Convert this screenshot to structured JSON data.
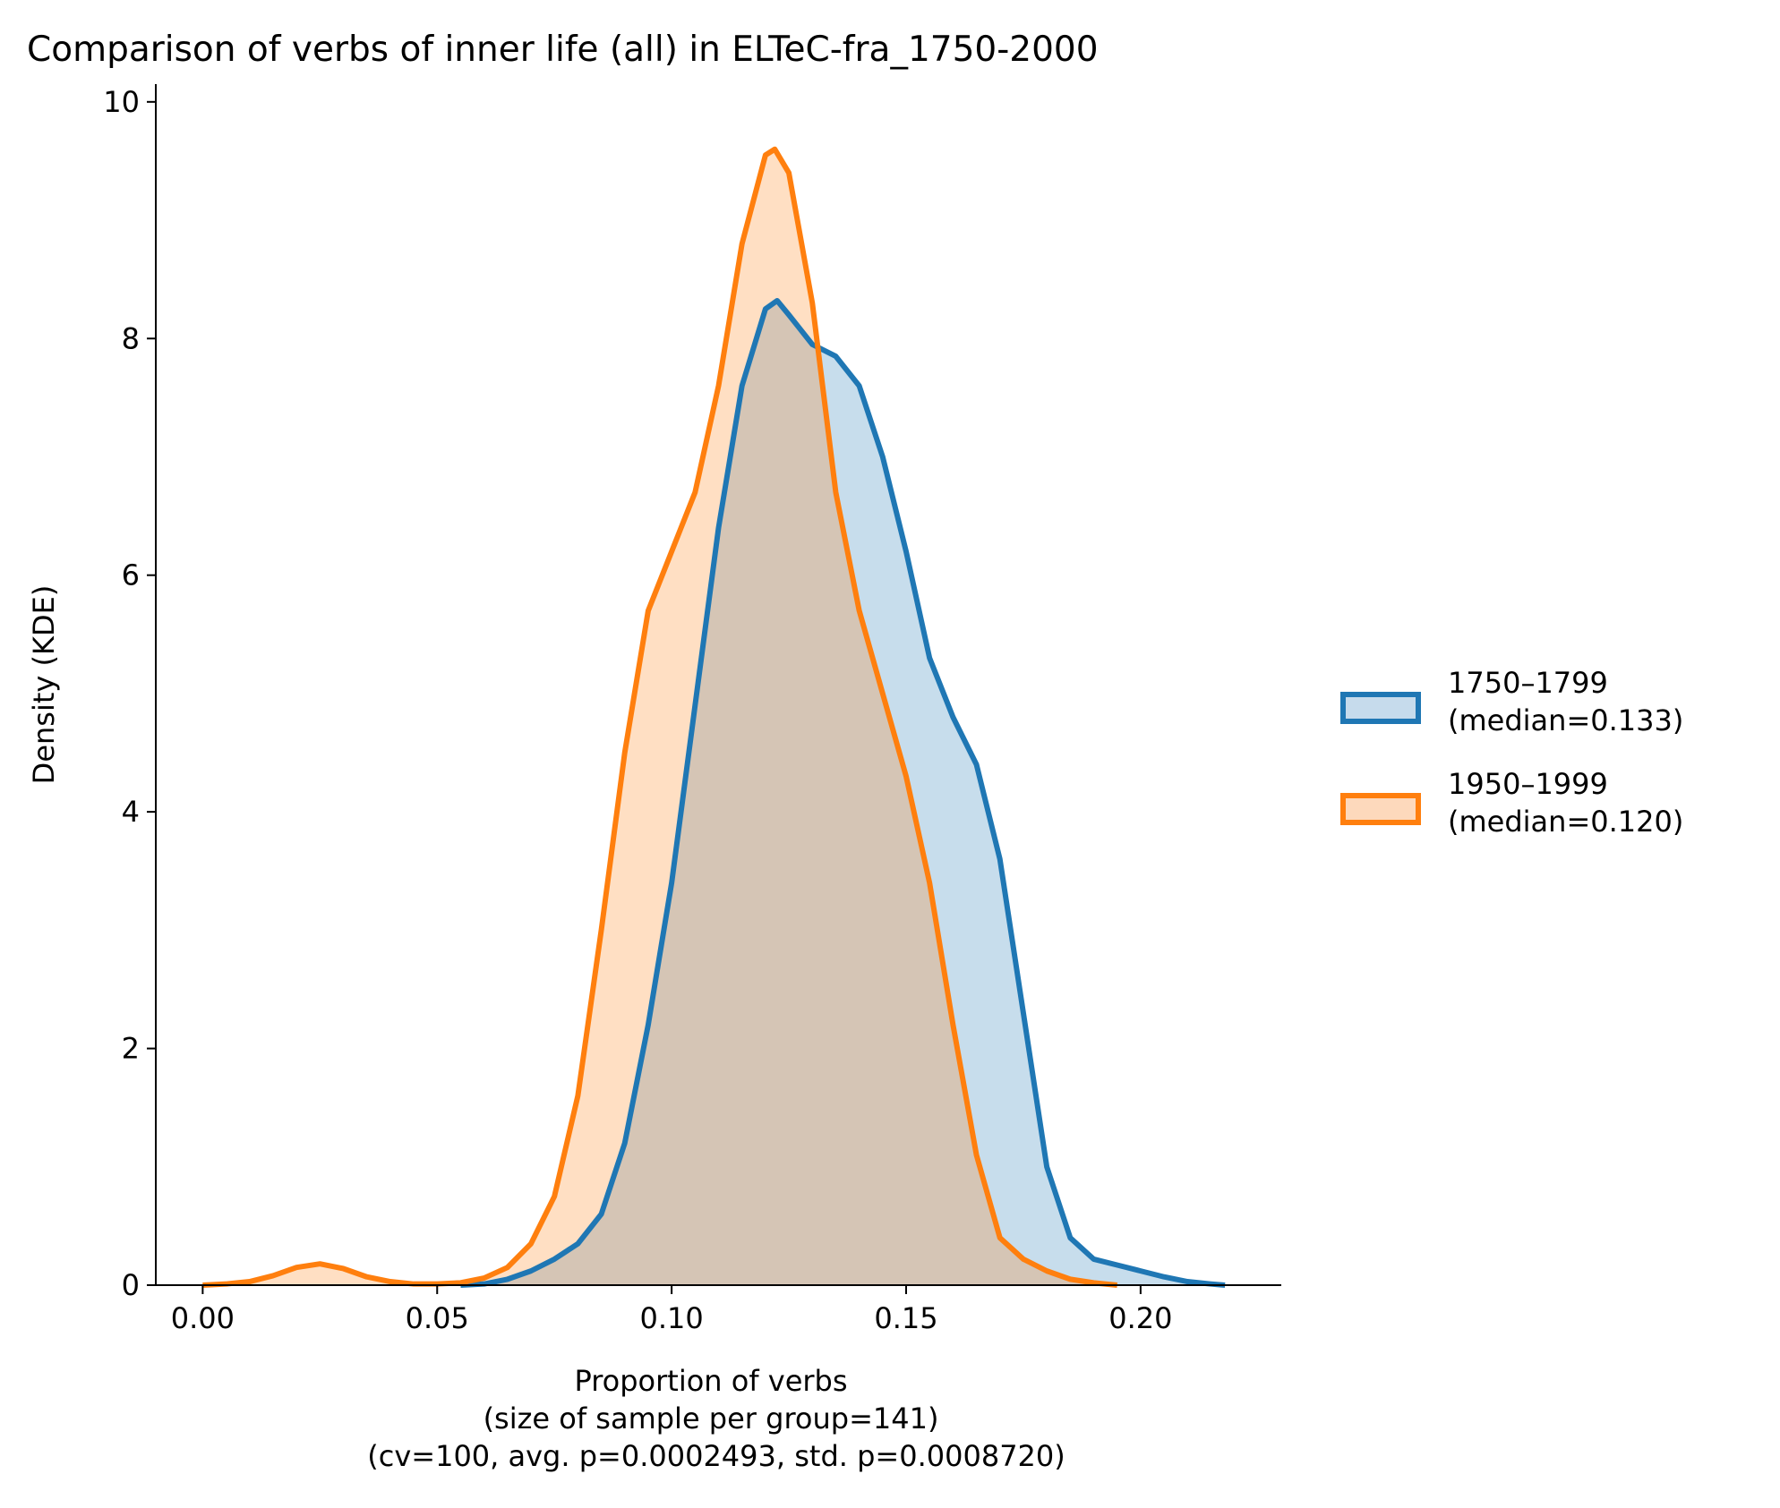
{
  "chart_data": {
    "type": "area",
    "title": "Comparison of verbs of inner life (all) in ELTeC-fra_1750-2000",
    "xlabel_lines": [
      "Proportion of verbs",
      "(size of sample per group=141)",
      "(cv=100, avg. p=0.0002493, std. p=0.0008720)"
    ],
    "ylabel": "Density (KDE)",
    "xlim": [
      -0.01,
      0.23
    ],
    "ylim": [
      0,
      10.15
    ],
    "xticks": [
      0.0,
      0.05,
      0.1,
      0.15,
      0.2
    ],
    "xtick_labels": [
      "0.00",
      "0.05",
      "0.10",
      "0.15",
      "0.20"
    ],
    "yticks": [
      0,
      2,
      4,
      6,
      8,
      10
    ],
    "ytick_labels": [
      "0",
      "2",
      "4",
      "6",
      "8",
      "10"
    ],
    "grid": false,
    "legend_position": "right",
    "series": [
      {
        "name": "1750–1799",
        "label_lines": [
          "1750–1799",
          "(median=0.133)"
        ],
        "color": "#1f77b4",
        "fill": "#c6dbec",
        "points": [
          [
            0.055,
            0.0
          ],
          [
            0.06,
            0.01
          ],
          [
            0.065,
            0.05
          ],
          [
            0.07,
            0.12
          ],
          [
            0.075,
            0.22
          ],
          [
            0.08,
            0.35
          ],
          [
            0.085,
            0.6
          ],
          [
            0.09,
            1.2
          ],
          [
            0.095,
            2.2
          ],
          [
            0.1,
            3.4
          ],
          [
            0.105,
            4.9
          ],
          [
            0.11,
            6.4
          ],
          [
            0.115,
            7.6
          ],
          [
            0.12,
            8.25
          ],
          [
            0.1225,
            8.32
          ],
          [
            0.125,
            8.2
          ],
          [
            0.13,
            7.95
          ],
          [
            0.135,
            7.85
          ],
          [
            0.14,
            7.6
          ],
          [
            0.145,
            7.0
          ],
          [
            0.15,
            6.2
          ],
          [
            0.155,
            5.3
          ],
          [
            0.16,
            4.8
          ],
          [
            0.165,
            4.4
          ],
          [
            0.17,
            3.6
          ],
          [
            0.175,
            2.3
          ],
          [
            0.18,
            1.0
          ],
          [
            0.185,
            0.4
          ],
          [
            0.19,
            0.22
          ],
          [
            0.195,
            0.17
          ],
          [
            0.2,
            0.12
          ],
          [
            0.205,
            0.07
          ],
          [
            0.21,
            0.03
          ],
          [
            0.215,
            0.01
          ],
          [
            0.218,
            0.0
          ]
        ]
      },
      {
        "name": "1950–1999",
        "label_lines": [
          "1950–1999",
          "(median=0.120)"
        ],
        "color": "#ff7f0e",
        "fill": "#fdd9bc",
        "points": [
          [
            0.0,
            0.0
          ],
          [
            0.005,
            0.01
          ],
          [
            0.01,
            0.03
          ],
          [
            0.015,
            0.08
          ],
          [
            0.02,
            0.15
          ],
          [
            0.025,
            0.18
          ],
          [
            0.03,
            0.14
          ],
          [
            0.035,
            0.07
          ],
          [
            0.04,
            0.03
          ],
          [
            0.045,
            0.01
          ],
          [
            0.05,
            0.01
          ],
          [
            0.055,
            0.02
          ],
          [
            0.06,
            0.06
          ],
          [
            0.065,
            0.15
          ],
          [
            0.07,
            0.35
          ],
          [
            0.075,
            0.75
          ],
          [
            0.08,
            1.6
          ],
          [
            0.085,
            3.0
          ],
          [
            0.09,
            4.5
          ],
          [
            0.095,
            5.7
          ],
          [
            0.1,
            6.2
          ],
          [
            0.105,
            6.7
          ],
          [
            0.11,
            7.6
          ],
          [
            0.115,
            8.8
          ],
          [
            0.12,
            9.55
          ],
          [
            0.122,
            9.6
          ],
          [
            0.125,
            9.4
          ],
          [
            0.13,
            8.3
          ],
          [
            0.135,
            6.7
          ],
          [
            0.14,
            5.7
          ],
          [
            0.145,
            5.0
          ],
          [
            0.15,
            4.3
          ],
          [
            0.155,
            3.4
          ],
          [
            0.16,
            2.2
          ],
          [
            0.165,
            1.1
          ],
          [
            0.17,
            0.4
          ],
          [
            0.175,
            0.22
          ],
          [
            0.18,
            0.12
          ],
          [
            0.185,
            0.05
          ],
          [
            0.19,
            0.02
          ],
          [
            0.195,
            0.0
          ]
        ]
      }
    ]
  }
}
